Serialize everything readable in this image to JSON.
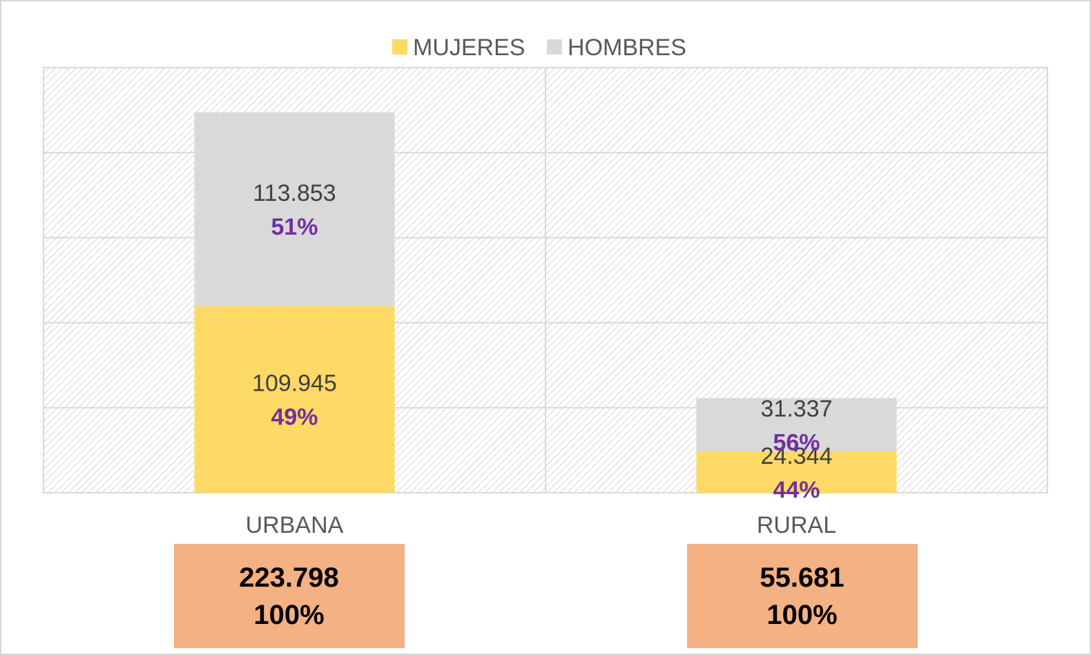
{
  "chart_data": {
    "type": "bar",
    "stacked": true,
    "categories": [
      "URBANA",
      "RURAL"
    ],
    "series": [
      {
        "name": "MUJERES",
        "values": [
          109945,
          24344
        ],
        "labels": [
          "109.945",
          "24.344"
        ],
        "percent_labels": [
          "49%",
          "44%"
        ],
        "color": "#FFD966"
      },
      {
        "name": "HOMBRES",
        "values": [
          113853,
          31337
        ],
        "labels": [
          "113.853",
          "31.337"
        ],
        "percent_labels": [
          "51%",
          "56%"
        ],
        "color": "#D9D9D9"
      }
    ],
    "ylim": [
      0,
      250000
    ],
    "grid": true,
    "legend_position": "top",
    "totals": [
      {
        "value": "223.798",
        "percent": "100%"
      },
      {
        "value": "55.681",
        "percent": "100%"
      }
    ],
    "colors": {
      "percent_text": "#7030A0",
      "total_box": "#F4B183",
      "plot_hatch": "#d9d9d9",
      "gridline": "#d9d9d9"
    }
  }
}
